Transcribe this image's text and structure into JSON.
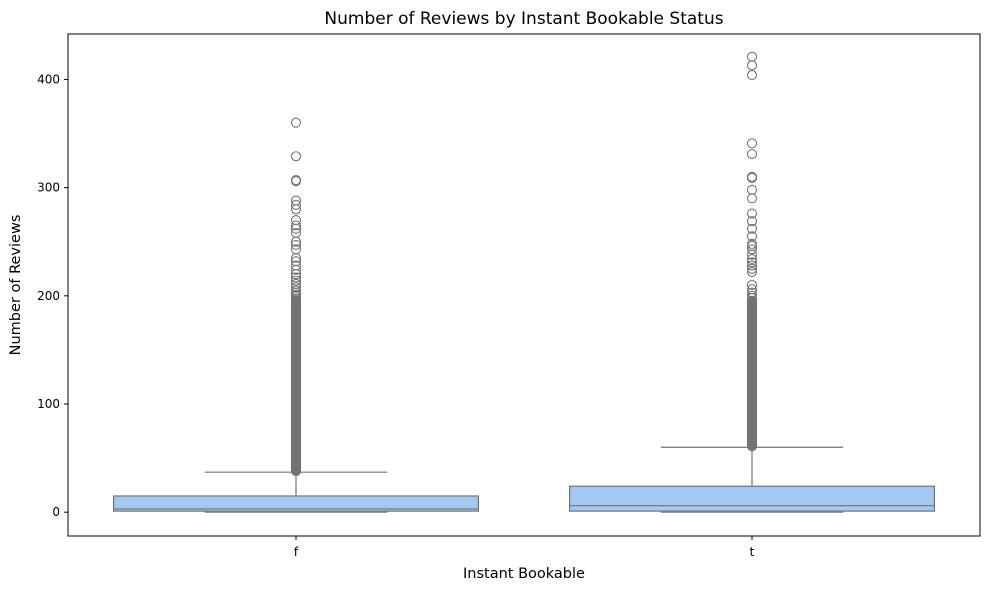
{
  "chart_data": {
    "type": "boxplot",
    "title": "Number of Reviews by Instant Bookable Status",
    "xlabel": "Instant Bookable",
    "ylabel": "Number of Reviews",
    "categories": [
      "f",
      "t"
    ],
    "ylim": [
      -22,
      442
    ],
    "yticks": [
      0,
      100,
      200,
      300,
      400
    ],
    "grid": false,
    "box_color": "#a1c9f4",
    "line_color": "#737373",
    "boxes": [
      {
        "category": "f",
        "whisker_low": 0,
        "q1": 1,
        "median": 3,
        "q3": 15,
        "whisker_high": 37,
        "outliers": [
          360,
          329,
          307,
          306,
          288,
          284,
          280,
          270,
          265,
          262,
          258,
          250,
          247,
          243,
          235,
          232,
          228,
          224,
          220,
          217,
          214,
          211,
          208,
          205,
          203,
          201,
          199,
          197
        ],
        "outlier_range": [
          38,
          196
        ]
      },
      {
        "category": "t",
        "whisker_low": 0,
        "q1": 1,
        "median": 6,
        "q3": 24,
        "whisker_high": 60,
        "outliers": [
          421,
          413,
          404,
          341,
          331,
          310,
          309,
          298,
          290,
          276,
          269,
          262,
          255,
          248,
          246,
          243,
          238,
          234,
          231,
          228,
          225,
          222,
          210,
          206,
          203,
          200,
          198
        ],
        "outlier_range": [
          61,
          196
        ]
      }
    ]
  }
}
